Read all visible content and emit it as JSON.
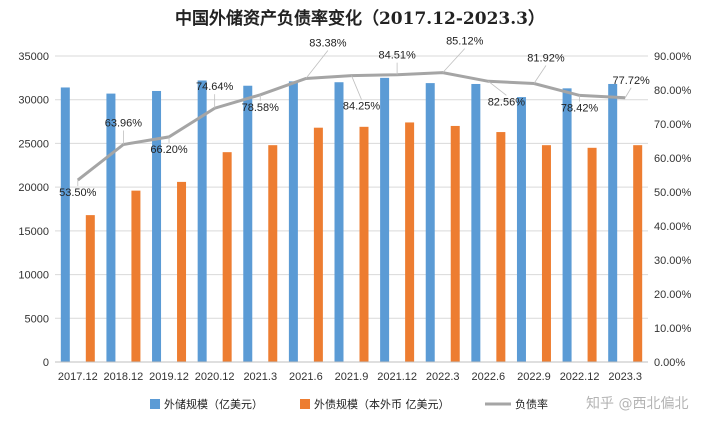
{
  "chart_data": {
    "type": "bar",
    "title": "中国外储资产负债率变化（2017.12-2023.3）",
    "categories": [
      "2017.12",
      "2018.12",
      "2019.12",
      "2020.12",
      "2021.3",
      "2021.6",
      "2021.9",
      "2021.12",
      "2022.3",
      "2022.6",
      "2022.9",
      "2022.12",
      "2023.3"
    ],
    "series": [
      {
        "name": "外储规模（亿美元）",
        "kind": "bar",
        "axis": "left",
        "color": "#5B9BD5",
        "values": [
          31400,
          30700,
          31000,
          32200,
          31600,
          32100,
          32000,
          32500,
          31900,
          31800,
          30300,
          31300,
          31800
        ]
      },
      {
        "name": "外债规模（本外币 亿美元）",
        "kind": "bar",
        "axis": "left",
        "color": "#ED7D31",
        "values": [
          16800,
          19600,
          20600,
          24000,
          24800,
          26800,
          26900,
          27400,
          27000,
          26300,
          24800,
          24500,
          24800
        ]
      },
      {
        "name": "负债率",
        "kind": "line",
        "axis": "right",
        "color": "#A5A5A5",
        "values": [
          0.535,
          0.6396,
          0.662,
          0.7464,
          0.7858,
          0.8338,
          0.8425,
          0.8451,
          0.8512,
          0.8256,
          0.8192,
          0.7842,
          0.7772
        ],
        "labels": [
          "53.50%",
          "63.96%",
          "66.20%",
          "74.64%",
          "78.58%",
          "83.38%",
          "84.25%",
          "84.51%",
          "85.12%",
          "82.56%",
          "81.92%",
          "78.42%",
          "77.72%"
        ]
      }
    ],
    "y_left": {
      "min": 0,
      "max": 35000,
      "step": 5000,
      "ticks": [
        "0",
        "5000",
        "10000",
        "15000",
        "20000",
        "25000",
        "30000",
        "35000"
      ]
    },
    "y_right": {
      "min": 0,
      "max": 0.9,
      "step": 0.1,
      "ticks": [
        "0.00%",
        "10.00%",
        "20.00%",
        "30.00%",
        "40.00%",
        "50.00%",
        "60.00%",
        "70.00%",
        "80.00%",
        "90.00%"
      ]
    },
    "grid": true,
    "legend": "bottom"
  },
  "watermark": "知乎 @西北偏北"
}
